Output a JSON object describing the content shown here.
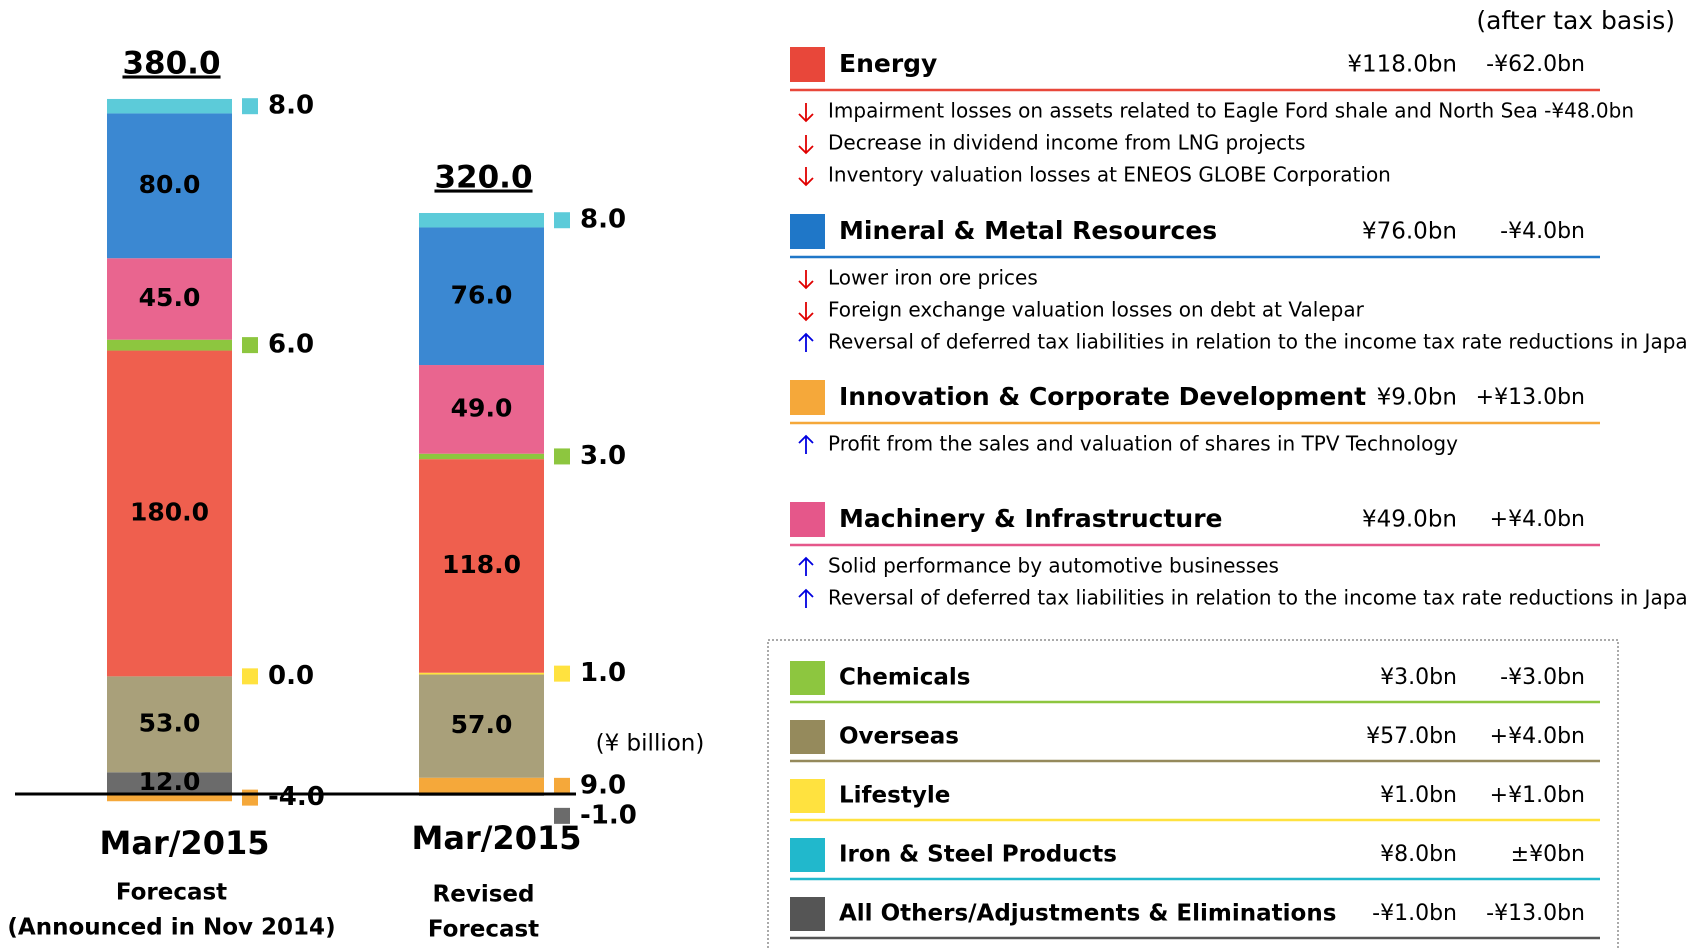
{
  "chart_data": {
    "type": "stacked_bar",
    "categories": [
      "Mar/2015",
      "Mar/2015"
    ],
    "category_sublabels": [
      [
        "Forecast",
        "(Announced in Nov 2014)"
      ],
      [
        "Revised",
        "Forecast"
      ]
    ],
    "totals": [
      380,
      320
    ],
    "total_labels": [
      "380.0",
      "320.0"
    ],
    "unit_label": "(¥ billion)",
    "series": [
      {
        "color": "#6b6b6b",
        "values": [
          12,
          -1
        ],
        "value_labels": [
          "12.0",
          "-1.0"
        ]
      },
      {
        "color": "#f5a83a",
        "values": [
          -4,
          9
        ],
        "value_labels": [
          "-4.0",
          "9.0"
        ]
      },
      {
        "color": "#a9a07a",
        "values": [
          53,
          57
        ],
        "value_labels": [
          "53.0",
          "57.0"
        ]
      },
      {
        "color": "#ffe23f",
        "values": [
          0,
          1
        ],
        "value_labels": [
          "0.0",
          "1.0"
        ]
      },
      {
        "color": "#ef5f4e",
        "values": [
          180,
          118
        ],
        "value_labels": [
          "180.0",
          "118.0"
        ]
      },
      {
        "color": "#8dc63f",
        "values": [
          6,
          3
        ],
        "value_labels": [
          "6.0",
          "3.0"
        ]
      },
      {
        "color": "#e9658f",
        "values": [
          45,
          49
        ],
        "value_labels": [
          "45.0",
          "49.0"
        ]
      },
      {
        "color": "#3b88d2",
        "values": [
          80,
          76
        ],
        "value_labels": [
          "80.0",
          "76.0"
        ]
      },
      {
        "color": "#5ccbd9",
        "values": [
          8,
          8
        ],
        "value_labels": [
          "8.0",
          "8.0"
        ]
      }
    ]
  },
  "note": "(after tax basis)",
  "segments": [
    {
      "name": "Energy",
      "color": "#e8473a",
      "text_color": "#d0141c",
      "amount": "¥118.0bn",
      "change": "-¥62.0bn",
      "bullets": [
        {
          "dir": "down",
          "text": "Impairment losses on assets related to Eagle Ford shale and  North Sea -¥48.0bn"
        },
        {
          "dir": "down",
          "text": "Decrease in dividend income from LNG projects"
        },
        {
          "dir": "down",
          "text": "Inventory valuation losses at ENEOS GLOBE Corporation"
        }
      ]
    },
    {
      "name": "Mineral & Metal Resources",
      "color": "#1f77c8",
      "text_color": "#1a4fa0",
      "amount": "¥76.0bn",
      "change": "-¥4.0bn",
      "bullets": [
        {
          "dir": "down",
          "text": "Lower iron ore prices"
        },
        {
          "dir": "down",
          "text": "Foreign exchange valuation losses on debt at Valepar"
        },
        {
          "dir": "up",
          "text": "Reversal of deferred tax liabilities in relation to the income tax rate reductions in Japan"
        }
      ]
    },
    {
      "name": "Innovation & Corporate Development",
      "color": "#f5a83a",
      "text_color": "#f0901a",
      "amount": "¥9.0bn",
      "change": "+¥13.0bn",
      "bullets": [
        {
          "dir": "up",
          "text": "Profit from the sales and valuation of shares in TPV Technology"
        }
      ]
    },
    {
      "name": "Machinery & Infrastructure",
      "color": "#e5578a",
      "text_color": "#e0507f",
      "amount": "¥49.0bn",
      "change": "+¥4.0bn",
      "bullets": [
        {
          "dir": "up",
          "text": "Solid performance by automotive businesses"
        },
        {
          "dir": "up",
          "text": "Reversal of deferred tax liabilities in relation to the income tax rate reductions in Japan"
        }
      ]
    }
  ],
  "other_segments": [
    {
      "name": "Chemicals",
      "color": "#8dc63f",
      "text_color": "#7ab33e",
      "amount": "¥3.0bn",
      "change": "-¥3.0bn"
    },
    {
      "name": "Overseas",
      "color": "#958a5c",
      "text_color": "#8c8154",
      "amount": "¥57.0bn",
      "change": "+¥4.0bn"
    },
    {
      "name": "Lifestyle",
      "color": "#ffe23f",
      "text_color": "#f2cf20",
      "amount": "¥1.0bn",
      "change": "+¥1.0bn"
    },
    {
      "name": "Iron & Steel Products",
      "color": "#21b8cc",
      "text_color": "#1fb3c9",
      "amount": "¥8.0bn",
      "change": "±¥0bn"
    },
    {
      "name": "All Others/Adjustments & Eliminations",
      "color": "#555555",
      "text_color": "#000000",
      "amount": "-¥1.0bn",
      "change": "-¥13.0bn"
    }
  ]
}
